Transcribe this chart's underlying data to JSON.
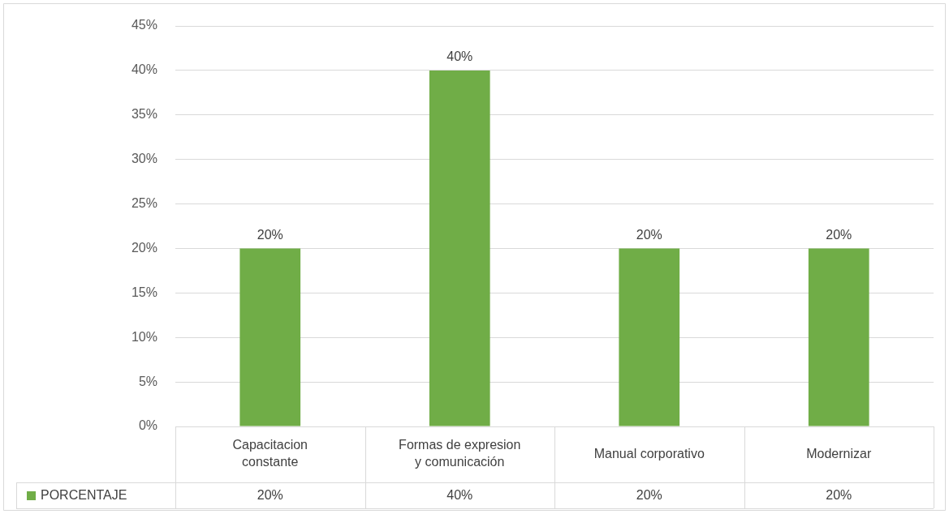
{
  "chart_data": {
    "type": "bar",
    "categories": [
      "Capacitacion constante",
      "Formas de expresion y comunicación",
      "Manual corporativo",
      "Modernizar"
    ],
    "series": [
      {
        "name": "PORCENTAJE",
        "color": "#70ad47",
        "values": [
          20,
          40,
          20,
          20
        ],
        "value_labels": [
          "20%",
          "40%",
          "20%",
          "20%"
        ]
      }
    ],
    "ylim": [
      0,
      45
    ],
    "yticks": [
      {
        "value": 0,
        "label": "0%"
      },
      {
        "value": 5,
        "label": "5%"
      },
      {
        "value": 10,
        "label": "10%"
      },
      {
        "value": 15,
        "label": "15%"
      },
      {
        "value": 20,
        "label": "20%"
      },
      {
        "value": 25,
        "label": "25%"
      },
      {
        "value": 30,
        "label": "30%"
      },
      {
        "value": 35,
        "label": "35%"
      },
      {
        "value": 40,
        "label": "40%"
      },
      {
        "value": 45,
        "label": "45%"
      }
    ],
    "grid": "y",
    "legend": "bottom"
  }
}
